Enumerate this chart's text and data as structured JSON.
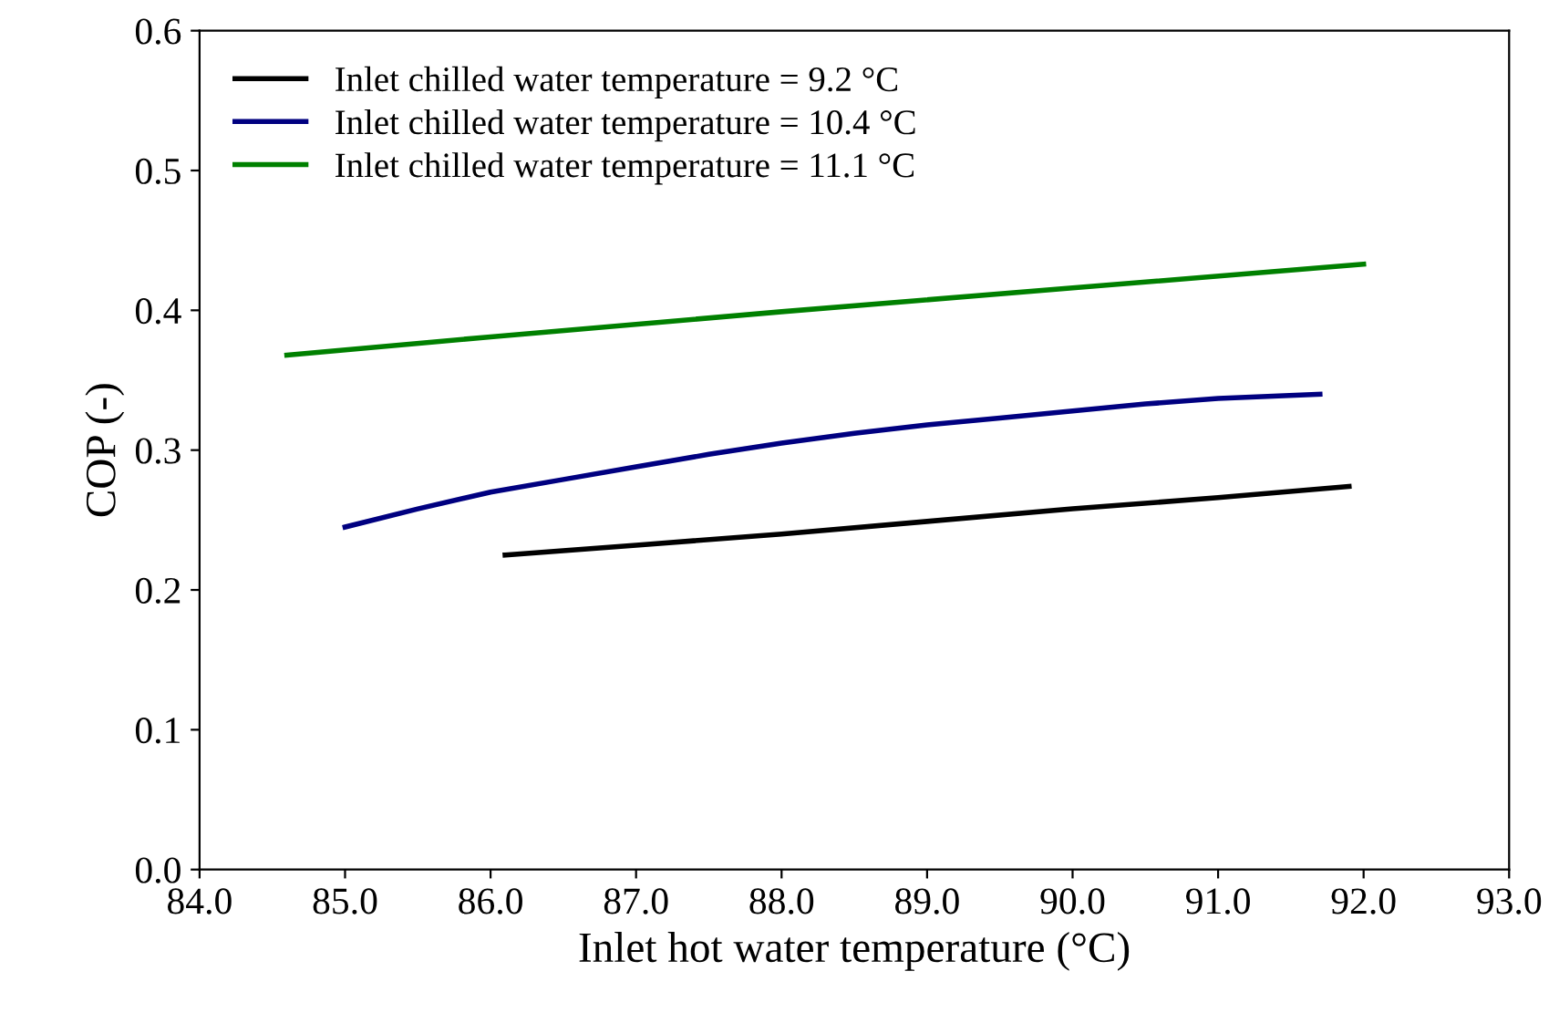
{
  "chart_data": {
    "type": "line",
    "xlabel": "Inlet hot water temperature (°C)",
    "ylabel": "COP (-)",
    "xlim": [
      84,
      93
    ],
    "xticks": [
      {
        "value": 84,
        "label": "84.0"
      },
      {
        "value": 85,
        "label": "85.0"
      },
      {
        "value": 86,
        "label": "86.0"
      },
      {
        "value": 87,
        "label": "87.0"
      },
      {
        "value": 88,
        "label": "88.0"
      },
      {
        "value": 89,
        "label": "89.0"
      },
      {
        "value": 90,
        "label": "90.0"
      },
      {
        "value": 91,
        "label": "91.0"
      },
      {
        "value": 92,
        "label": "92.0"
      },
      {
        "value": 93,
        "label": "93.0"
      }
    ],
    "ylim": [
      0,
      0.6
    ],
    "yticks": [
      {
        "value": 0,
        "label": "0.0"
      },
      0.1,
      0.2,
      0.3,
      0.4,
      0.5,
      0.6
    ],
    "grid": false,
    "legend": "top left",
    "marker": "none",
    "line_style": "solid",
    "series": [
      {
        "name": "Inlet chilled water temperature = 9.2 °C",
        "color": "#000000",
        "x": [
          86.1,
          87,
          88,
          89,
          90,
          91,
          91.9
        ],
        "values": [
          0.225,
          0.232,
          0.24,
          0.249,
          0.258,
          0.266,
          0.274
        ]
      },
      {
        "name": "Inlet chilled water temperature = 10.4 °C",
        "color": "#000080",
        "x": [
          85,
          85.5,
          86,
          86.5,
          87,
          87.5,
          88,
          88.5,
          89,
          89.5,
          90,
          90.5,
          91,
          91.7
        ],
        "values": [
          0.245,
          0.258,
          0.27,
          0.279,
          0.288,
          0.297,
          0.305,
          0.312,
          0.318,
          0.323,
          0.328,
          0.333,
          0.337,
          0.34
        ]
      },
      {
        "name": "Inlet chilled water temperature = 11.1 °C",
        "color": "#008000",
        "x": [
          84.6,
          86,
          88,
          90,
          92
        ],
        "values": [
          0.368,
          0.381,
          0.399,
          0.416,
          0.433
        ]
      }
    ]
  }
}
